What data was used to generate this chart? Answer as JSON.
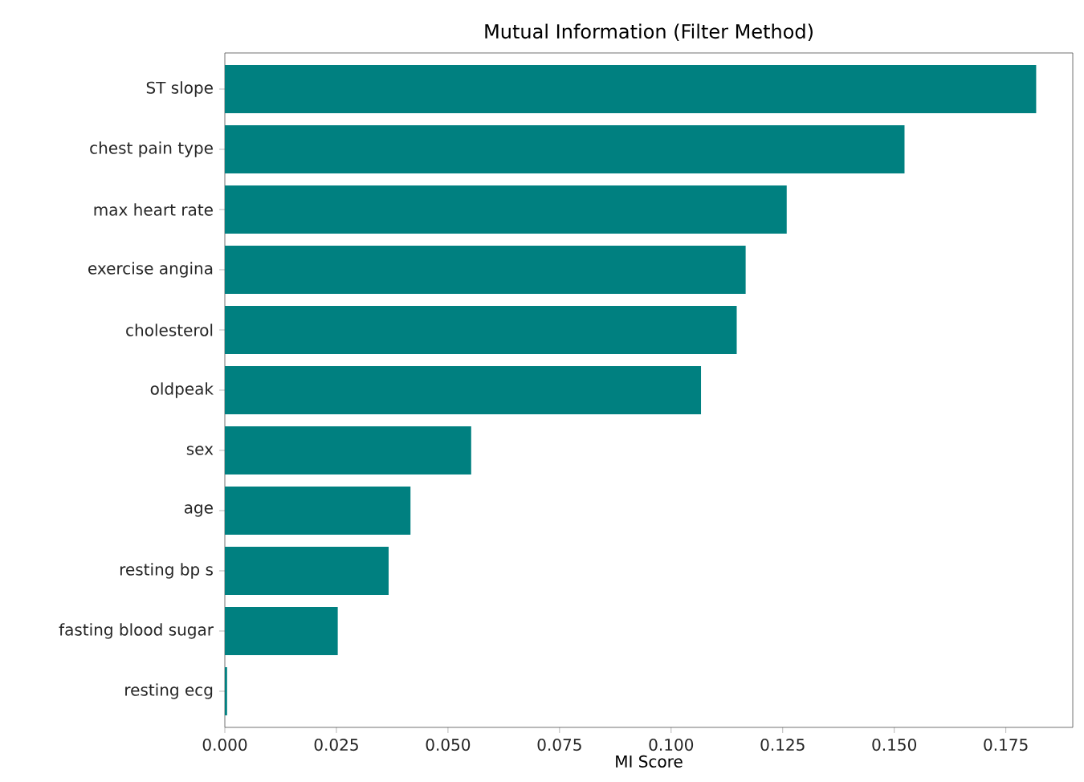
{
  "chart_data": {
    "type": "bar",
    "orientation": "horizontal",
    "title": "Mutual Information (Filter Method)",
    "xlabel": "MI Score",
    "categories": [
      "ST slope",
      "chest pain type",
      "max heart rate",
      "exercise angina",
      "cholesterol",
      "oldpeak",
      "sex",
      "age",
      "resting bp s",
      "fasting blood sugar",
      "resting ecg"
    ],
    "values": [
      0.1818,
      0.1523,
      0.1259,
      0.1167,
      0.1147,
      0.1067,
      0.0552,
      0.0416,
      0.0367,
      0.0253,
      0.0005
    ],
    "color": "#008080",
    "xlim": [
      0,
      0.19
    ],
    "xticks": [
      {
        "value": 0,
        "label": "0.000"
      },
      {
        "value": 0.025,
        "label": "0.025"
      },
      {
        "value": 0.05,
        "label": "0.050"
      },
      {
        "value": 0.075,
        "label": "0.075"
      },
      {
        "value": 0.1,
        "label": "0.100"
      },
      {
        "value": 0.125,
        "label": "0.125"
      },
      {
        "value": 0.15,
        "label": "0.150"
      },
      {
        "value": 0.175,
        "label": "0.175"
      }
    ],
    "marker": "none"
  }
}
